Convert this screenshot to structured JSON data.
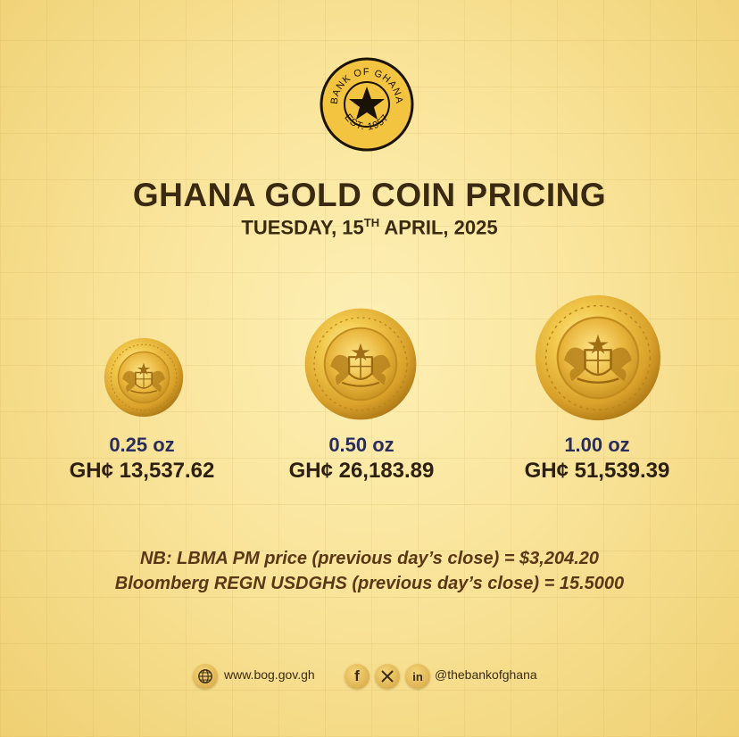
{
  "seal": {
    "arc_top": "BANK OF GHANA",
    "arc_bottom": "EST. 1957",
    "icon": "black-star-icon"
  },
  "title": "GHANA GOLD COIN PRICING",
  "date": {
    "weekday_day": "TUESDAY, 15",
    "ordinal": "TH",
    "month_year": " APRIL, 2025"
  },
  "coins": [
    {
      "weight": "0.25 oz",
      "price": "GH¢ 13,537.62"
    },
    {
      "weight": "0.50 oz",
      "price": "GH¢ 26,183.89"
    },
    {
      "weight": "1.00 oz",
      "price": "GH¢ 51,539.39"
    }
  ],
  "notes": {
    "line1": "NB: LBMA PM price (previous day’s close) = $3,204.20",
    "line2": "Bloomberg REGN USDGHS (previous day’s close) = 15.5000"
  },
  "footer": {
    "website": "www.bog.gov.gh",
    "handle": "@thebankofghana",
    "icons": [
      "globe-icon",
      "facebook-icon",
      "x-icon",
      "linkedin-icon"
    ]
  },
  "colors": {
    "gold": "#d9a93a",
    "dark_brown": "#3a2a12",
    "navy": "#2a2d5c",
    "note_brown": "#5a3716"
  }
}
